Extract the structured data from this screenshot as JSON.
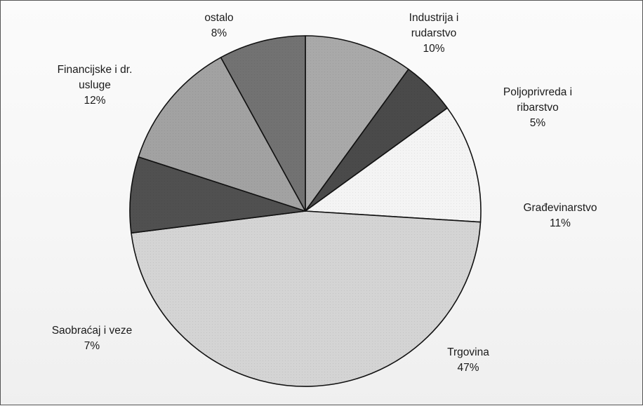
{
  "chart_data": {
    "type": "pie",
    "title": "",
    "slices": [
      {
        "name": "Industrija i rudarstvo",
        "label_lines": [
          "Industrija i",
          "rudarstvo"
        ],
        "value": 10,
        "value_label": "10%",
        "color": "#a9a9a9"
      },
      {
        "name": "Poljoprivreda i ribarstvo",
        "label_lines": [
          "Poljoprivreda i",
          "ribarstvo"
        ],
        "value": 5,
        "value_label": "5%",
        "color": "#4a4a4a"
      },
      {
        "name": "Građevinarstvo",
        "label_lines": [
          "Građevinarstvo"
        ],
        "value": 11,
        "value_label": "11%",
        "color": "#f4f4f4"
      },
      {
        "name": "Trgovina",
        "label_lines": [
          "Trgovina"
        ],
        "value": 47,
        "value_label": "47%",
        "color": "#d4d4d4"
      },
      {
        "name": "Saobraćaj i veze",
        "label_lines": [
          "Saobraćaj i veze"
        ],
        "value": 7,
        "value_label": "7%",
        "color": "#505050"
      },
      {
        "name": "Financijske i dr. usluge",
        "label_lines": [
          "Financijske i dr.",
          "usluge"
        ],
        "value": 12,
        "value_label": "12%",
        "color": "#a2a2a2"
      },
      {
        "name": "ostalo",
        "label_lines": [
          "ostalo"
        ],
        "value": 8,
        "value_label": "8%",
        "color": "#727272"
      }
    ],
    "start_angle_deg": 0,
    "direction": "clockwise",
    "legend": "none"
  }
}
